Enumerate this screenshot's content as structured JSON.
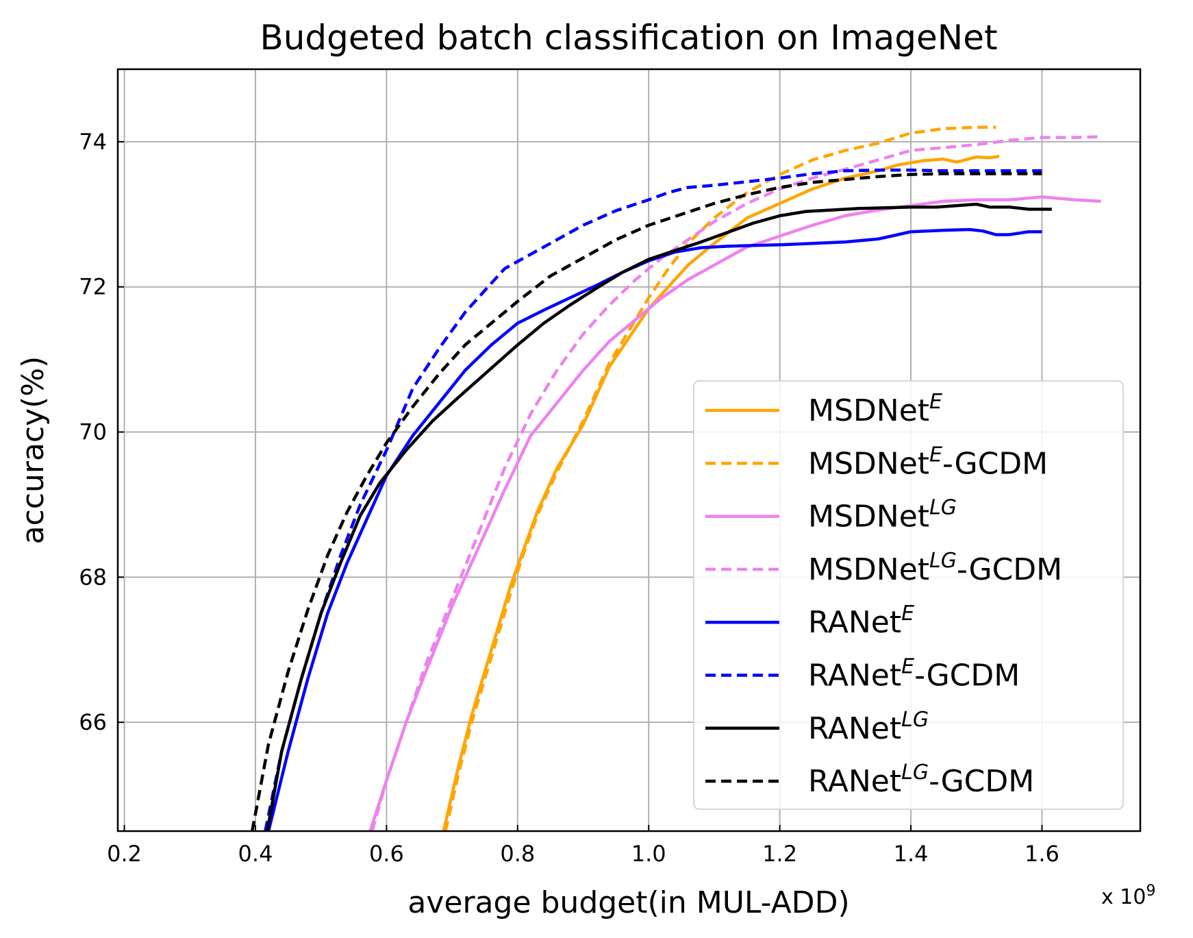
{
  "chart_data": {
    "type": "line",
    "title": "Budgeted batch classification on ImageNet",
    "xlabel": "average budget(in MUL-ADD)",
    "ylabel": "accuracy(%)",
    "x_offset_label": {
      "base": "x 10",
      "exponent": "9"
    },
    "xlim": [
      0.19,
      1.75
    ],
    "ylim": [
      64.5,
      75.0
    ],
    "xticks": [
      "0.2",
      "0.4",
      "0.6",
      "0.8",
      "1.0",
      "1.2",
      "1.4",
      "1.6"
    ],
    "yticks": [
      "66",
      "68",
      "70",
      "72",
      "74"
    ],
    "grid": true,
    "legend_position": "lower-right",
    "series": [
      {
        "name": "MSDNet",
        "sup": "E",
        "suffix": "",
        "color": "#FFA500",
        "dash": "solid",
        "x": [
          0.687,
          0.71,
          0.73,
          0.75,
          0.77,
          0.79,
          0.81,
          0.83,
          0.86,
          0.88,
          0.9,
          0.92,
          0.94,
          0.97,
          1.0,
          1.03,
          1.06,
          1.1,
          1.15,
          1.2,
          1.25,
          1.3,
          1.35,
          1.38,
          1.42,
          1.45,
          1.47,
          1.5,
          1.52,
          1.535
        ],
        "y": [
          64.5,
          65.4,
          66.1,
          66.7,
          67.3,
          67.9,
          68.4,
          68.9,
          69.5,
          69.8,
          70.1,
          70.5,
          70.9,
          71.3,
          71.7,
          72.0,
          72.3,
          72.6,
          72.95,
          73.15,
          73.35,
          73.5,
          73.6,
          73.68,
          73.74,
          73.76,
          73.72,
          73.79,
          73.78,
          73.8
        ]
      },
      {
        "name": "MSDNet",
        "sup": "E",
        "suffix": "-GCDM",
        "color": "#FFA500",
        "dash": "dashed",
        "x": [
          0.69,
          0.71,
          0.73,
          0.75,
          0.77,
          0.79,
          0.81,
          0.83,
          0.86,
          0.88,
          0.9,
          0.92,
          0.94,
          0.97,
          1.0,
          1.03,
          1.06,
          1.1,
          1.15,
          1.2,
          1.25,
          1.3,
          1.35,
          1.4,
          1.45,
          1.5,
          1.53
        ],
        "y": [
          64.5,
          65.3,
          66.0,
          66.6,
          67.2,
          67.8,
          68.35,
          68.85,
          69.45,
          69.8,
          70.15,
          70.55,
          70.95,
          71.4,
          71.85,
          72.25,
          72.6,
          72.95,
          73.3,
          73.55,
          73.75,
          73.88,
          73.98,
          74.12,
          74.18,
          74.2,
          74.2
        ]
      },
      {
        "name": "MSDNet",
        "sup": "LG",
        "suffix": "",
        "color": "#EE82EE",
        "dash": "solid",
        "x": [
          0.575,
          0.6,
          0.63,
          0.66,
          0.7,
          0.74,
          0.78,
          0.82,
          0.86,
          0.9,
          0.94,
          0.98,
          1.02,
          1.06,
          1.1,
          1.15,
          1.2,
          1.25,
          1.3,
          1.35,
          1.4,
          1.45,
          1.5,
          1.55,
          1.6,
          1.65,
          1.69
        ],
        "y": [
          64.5,
          65.2,
          66.0,
          66.7,
          67.6,
          68.4,
          69.2,
          69.95,
          70.4,
          70.85,
          71.25,
          71.55,
          71.85,
          72.1,
          72.3,
          72.55,
          72.7,
          72.85,
          72.98,
          73.06,
          73.12,
          73.18,
          73.2,
          73.2,
          73.24,
          73.2,
          73.18
        ]
      },
      {
        "name": "MSDNet",
        "sup": "LG",
        "suffix": "-GCDM",
        "color": "#EE82EE",
        "dash": "dashed",
        "x": [
          0.578,
          0.6,
          0.63,
          0.66,
          0.7,
          0.74,
          0.78,
          0.82,
          0.86,
          0.9,
          0.94,
          0.98,
          1.02,
          1.06,
          1.1,
          1.15,
          1.2,
          1.25,
          1.3,
          1.35,
          1.4,
          1.45,
          1.5,
          1.55,
          1.6,
          1.65,
          1.69
        ],
        "y": [
          64.5,
          65.2,
          66.0,
          66.8,
          67.7,
          68.6,
          69.5,
          70.25,
          70.85,
          71.35,
          71.75,
          72.1,
          72.4,
          72.65,
          72.9,
          73.15,
          73.35,
          73.5,
          73.62,
          73.75,
          73.88,
          73.92,
          73.96,
          74.02,
          74.06,
          74.06,
          74.07
        ]
      },
      {
        "name": "RANet",
        "sup": "E",
        "suffix": "",
        "color": "#0000FF",
        "dash": "solid",
        "x": [
          0.42,
          0.45,
          0.48,
          0.51,
          0.54,
          0.57,
          0.6,
          0.64,
          0.68,
          0.72,
          0.76,
          0.8,
          0.84,
          0.88,
          0.92,
          0.96,
          1.0,
          1.04,
          1.08,
          1.12,
          1.16,
          1.2,
          1.25,
          1.3,
          1.35,
          1.38,
          1.4,
          1.45,
          1.49,
          1.51,
          1.53,
          1.55,
          1.58,
          1.6
        ],
        "y": [
          64.5,
          65.6,
          66.6,
          67.5,
          68.2,
          68.8,
          69.4,
          69.95,
          70.4,
          70.85,
          71.2,
          71.5,
          71.68,
          71.85,
          72.02,
          72.2,
          72.36,
          72.48,
          72.54,
          72.56,
          72.57,
          72.58,
          72.6,
          72.62,
          72.66,
          72.72,
          72.76,
          72.78,
          72.79,
          72.77,
          72.72,
          72.72,
          72.76,
          72.76
        ]
      },
      {
        "name": "RANet",
        "sup": "E",
        "suffix": "-GCDM",
        "color": "#0000FF",
        "dash": "dashed",
        "x": [
          0.415,
          0.44,
          0.47,
          0.5,
          0.53,
          0.56,
          0.6,
          0.64,
          0.68,
          0.72,
          0.76,
          0.78,
          0.8,
          0.85,
          0.9,
          0.95,
          1.0,
          1.03,
          1.06,
          1.1,
          1.15,
          1.2,
          1.25,
          1.3,
          1.35,
          1.4,
          1.45,
          1.5,
          1.55,
          1.6
        ],
        "y": [
          64.5,
          65.6,
          66.6,
          67.5,
          68.3,
          69.0,
          69.75,
          70.6,
          71.15,
          71.65,
          72.05,
          72.25,
          72.35,
          72.6,
          72.85,
          73.05,
          73.2,
          73.3,
          73.37,
          73.4,
          73.45,
          73.5,
          73.56,
          73.6,
          73.61,
          73.61,
          73.6,
          73.6,
          73.6,
          73.6
        ]
      },
      {
        "name": "RANet",
        "sup": "LG",
        "suffix": "",
        "color": "#000000",
        "dash": "solid",
        "x": [
          0.418,
          0.44,
          0.47,
          0.5,
          0.53,
          0.56,
          0.59,
          0.63,
          0.67,
          0.71,
          0.75,
          0.8,
          0.84,
          0.88,
          0.92,
          0.96,
          1.0,
          1.04,
          1.08,
          1.12,
          1.16,
          1.2,
          1.24,
          1.28,
          1.32,
          1.36,
          1.4,
          1.44,
          1.47,
          1.5,
          1.52,
          1.55,
          1.58,
          1.615
        ],
        "y": [
          64.5,
          65.6,
          66.6,
          67.5,
          68.2,
          68.85,
          69.3,
          69.75,
          70.15,
          70.48,
          70.8,
          71.2,
          71.5,
          71.75,
          71.98,
          72.2,
          72.38,
          72.5,
          72.62,
          72.75,
          72.88,
          72.98,
          73.04,
          73.06,
          73.08,
          73.09,
          73.1,
          73.1,
          73.12,
          73.14,
          73.1,
          73.1,
          73.07,
          73.07
        ]
      },
      {
        "name": "RANet",
        "sup": "LG",
        "suffix": "-GCDM",
        "color": "#000000",
        "dash": "dashed",
        "x": [
          0.395,
          0.42,
          0.45,
          0.48,
          0.51,
          0.54,
          0.57,
          0.6,
          0.64,
          0.68,
          0.72,
          0.76,
          0.8,
          0.85,
          0.9,
          0.95,
          1.0,
          1.05,
          1.1,
          1.15,
          1.2,
          1.25,
          1.3,
          1.35,
          1.4,
          1.45,
          1.5,
          1.55,
          1.6
        ],
        "y": [
          64.5,
          65.7,
          66.7,
          67.55,
          68.3,
          68.9,
          69.4,
          69.85,
          70.35,
          70.8,
          71.2,
          71.5,
          71.8,
          72.15,
          72.4,
          72.65,
          72.85,
          73.0,
          73.15,
          73.27,
          73.37,
          73.44,
          73.48,
          73.52,
          73.55,
          73.56,
          73.56,
          73.56,
          73.56
        ]
      }
    ]
  }
}
